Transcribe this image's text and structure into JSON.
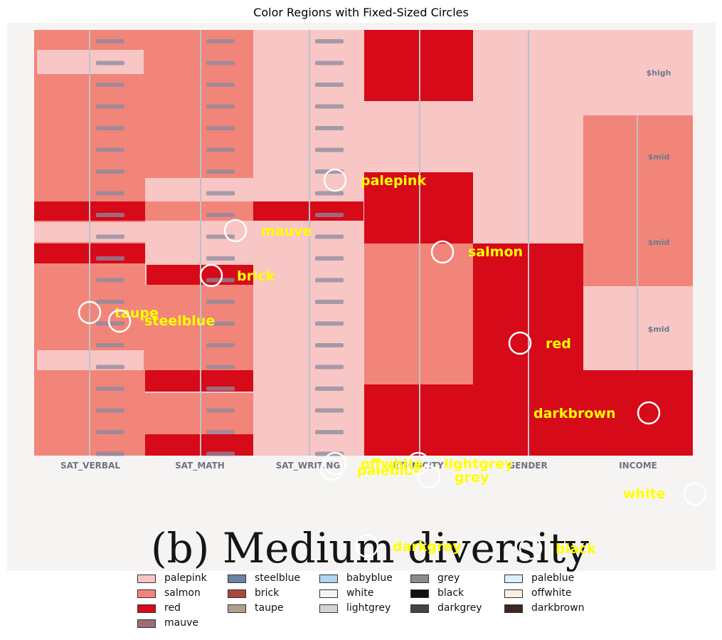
{
  "title": "Color Regions with Fixed-Sized Circles",
  "image": {
    "axis_labels": [
      "SAT_VERBAL",
      "SAT_MATH",
      "SAT_WRITING",
      "ETHNICITY",
      "GENDER",
      "INCOME"
    ],
    "income_labels": [
      "$high",
      "$mid",
      "$mid",
      "$mid"
    ],
    "caption": "(b) Medium diversity"
  },
  "colors": {
    "palepink": "#f8c6c4",
    "salmon": "#f28579",
    "red": "#d60a18",
    "mauve": "#9c6f76",
    "steelblue": "#6b82a0",
    "brick": "#a8483f",
    "taupe": "#b29e8c",
    "babyblue": "#b3d3ee",
    "white": "#f4f4f4",
    "lightgrey": "#d4d4d4",
    "grey": "#8b8b8b",
    "black": "#111111",
    "darkgrey": "#444444",
    "paleblue": "#dcefff",
    "offwhite": "#f7efe0",
    "darkbrown": "#3b2820",
    "label": "#ffff00"
  },
  "annotations": [
    {
      "label": "palepink"
    },
    {
      "label": "mauve"
    },
    {
      "label": "salmon"
    },
    {
      "label": "brick"
    },
    {
      "label": "taupe"
    },
    {
      "label": "steelblue"
    },
    {
      "label": "red"
    },
    {
      "label": "darkbrown"
    },
    {
      "label": "offwhite"
    },
    {
      "label": "paleblue"
    },
    {
      "label": "lightgrey"
    },
    {
      "label": "grey"
    },
    {
      "label": "white"
    },
    {
      "label": "darkgrey"
    },
    {
      "label": "black"
    }
  ],
  "legend": [
    {
      "label": "palepink",
      "color": "#f8c6c4"
    },
    {
      "label": "salmon",
      "color": "#f28579"
    },
    {
      "label": "red",
      "color": "#d60a18"
    },
    {
      "label": "mauve",
      "color": "#9c6f76"
    },
    {
      "label": "steelblue",
      "color": "#6b82a0"
    },
    {
      "label": "brick",
      "color": "#a8483f"
    },
    {
      "label": "taupe",
      "color": "#b29e8c"
    },
    {
      "label": "babyblue",
      "color": "#b3d3ee"
    },
    {
      "label": "white",
      "color": "#f4f4f4"
    },
    {
      "label": "lightgrey",
      "color": "#d4d4d4"
    },
    {
      "label": "grey",
      "color": "#8b8b8b"
    },
    {
      "label": "black",
      "color": "#111111"
    },
    {
      "label": "darkgrey",
      "color": "#444444"
    },
    {
      "label": "paleblue",
      "color": "#dcefff"
    },
    {
      "label": "offwhite",
      "color": "#f7efe0"
    },
    {
      "label": "darkbrown",
      "color": "#3b2820"
    }
  ]
}
